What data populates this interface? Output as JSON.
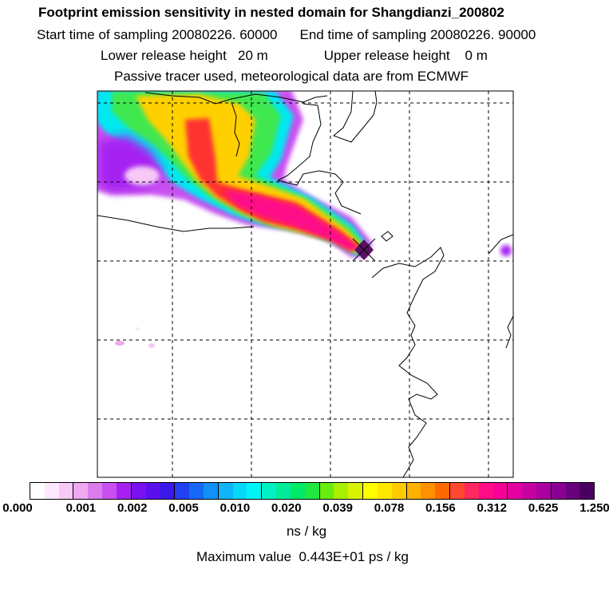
{
  "header": {
    "title": "Footprint emission sensitivity in nested domain for Shangdianzi_200802",
    "start": "Start time of sampling 20080226. 60000",
    "end": "End time of sampling 20080226. 90000",
    "lower": "Lower release height   20 m",
    "upper": "Upper release height    0 m",
    "info": "Passive tracer used, meteorological data are from ECMWF"
  },
  "legend": {
    "ticks": [
      "0.000",
      "0.001",
      "0.002",
      "0.005",
      "0.010",
      "0.020",
      "0.039",
      "0.078",
      "0.156",
      "0.312",
      "0.625",
      "1.250"
    ],
    "units": "ns / kg",
    "colors": [
      "#ffffff",
      "#fde8fd",
      "#f6c9f6",
      "#eeaaee",
      "#dc7cec",
      "#c850f0",
      "#a620f2",
      "#7c10f0",
      "#5a10ee",
      "#3a18ea",
      "#2040f2",
      "#1868f6",
      "#1090f8",
      "#10b4f8",
      "#08d8f8",
      "#00f4f4",
      "#00f0c4",
      "#00ec98",
      "#00e868",
      "#20e840",
      "#68ec10",
      "#a8f000",
      "#d8f200",
      "#ffff00",
      "#ffe800",
      "#ffcc00",
      "#ffb000",
      "#ff9000",
      "#ff6a00",
      "#ff4830",
      "#ff2860",
      "#ff0c88",
      "#f80098",
      "#e400a0",
      "#c800a2",
      "#aa00a0",
      "#8a0094",
      "#6a007c",
      "#4a0060"
    ],
    "major_every": 3.25
  },
  "max_value": "Maximum value  0.443E+01 ps / kg",
  "map": {
    "station": "Shangdianzi",
    "colors": {
      "plume_outer": "#cc55f0",
      "plume_cyan": "#00e8f0",
      "plume_green": "#40e850",
      "plume_yellow": "#ffd000",
      "plume_red": "#ff3030",
      "plume_core": "#ff0c88",
      "marker": "#5a1060"
    }
  }
}
